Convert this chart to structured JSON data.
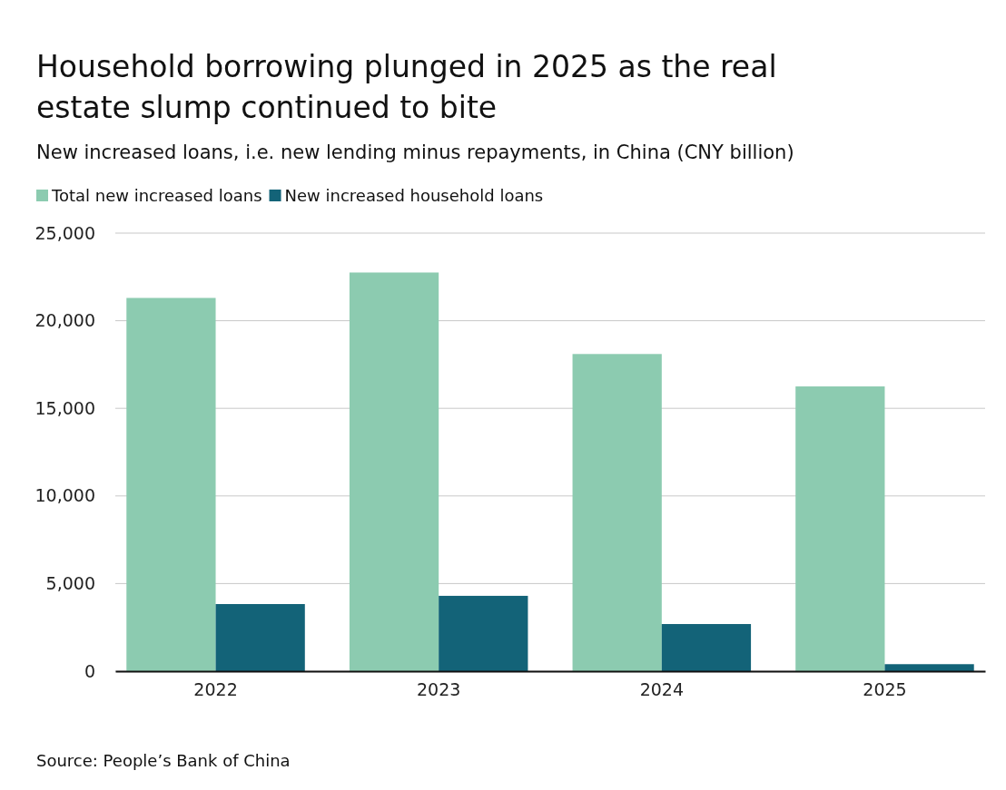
{
  "chart_data": {
    "type": "bar",
    "title": "Household borrowing plunged in 2025 as the real estate slump continued to bite",
    "subtitle": "New increased loans, i.e. new lending minus repayments, in China (CNY billion)",
    "categories": [
      "2022",
      "2023",
      "2024",
      "2025"
    ],
    "series": [
      {
        "name": "Total new increased loans",
        "color": "#8ccbb0",
        "values": [
          21300,
          22750,
          18100,
          16250
        ]
      },
      {
        "name": "New increased household loans",
        "color": "#136378",
        "values": [
          3830,
          4300,
          2690,
          400
        ]
      }
    ],
    "ylim": [
      0,
      25000
    ],
    "yticks": [
      0,
      {
        "value": 5000,
        "label": "5,000"
      },
      {
        "value": 10000,
        "label": "10,000"
      },
      {
        "value": 15000,
        "label": "15,000"
      },
      {
        "value": 20000,
        "label": "20,000"
      },
      {
        "value": 25000,
        "label": "25,000"
      }
    ],
    "grid": "y",
    "legend": "top left",
    "annotations": [
      "Source: People’s Bank of China"
    ]
  }
}
